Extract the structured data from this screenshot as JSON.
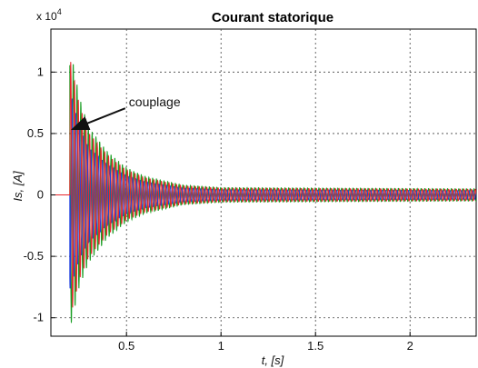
{
  "chart_data": {
    "type": "line",
    "title": "Courant statorique",
    "xlabel": "t, [s]",
    "ylabel": "Is, [A]",
    "y_multiplier": "x 10",
    "y_exponent": "4",
    "xlim": [
      0.1,
      2.35
    ],
    "ylim": [
      -1.15,
      1.35
    ],
    "x_ticks": [
      0.5,
      1,
      1.5,
      2
    ],
    "x_tick_labels": [
      "0.5",
      "1",
      "1.5",
      "2"
    ],
    "y_ticks": [
      -1,
      -0.5,
      0,
      0.5,
      1
    ],
    "y_tick_labels": [
      "-1",
      "-0.5",
      "0",
      "0.5",
      "1"
    ],
    "grid": true,
    "coupling_time": 0.2,
    "series_colors": [
      "#e8262a",
      "#1a9e24",
      "#1f3fe0"
    ],
    "envelope": [
      {
        "t": 0.2,
        "max": 1.22,
        "min": -1.1
      },
      {
        "t": 0.25,
        "max": 0.8,
        "min": -0.75
      },
      {
        "t": 0.3,
        "max": 0.55,
        "min": -0.55
      },
      {
        "t": 0.4,
        "max": 0.35,
        "min": -0.35
      },
      {
        "t": 0.5,
        "max": 0.22,
        "min": -0.22
      },
      {
        "t": 0.6,
        "max": 0.15,
        "min": -0.15
      },
      {
        "t": 0.8,
        "max": 0.08,
        "min": -0.08
      },
      {
        "t": 1.0,
        "max": 0.06,
        "min": -0.06
      },
      {
        "t": 2.35,
        "max": 0.05,
        "min": -0.05
      }
    ],
    "annotations": [
      {
        "text": "couplage",
        "x": 0.2,
        "y": 0.52
      }
    ]
  }
}
